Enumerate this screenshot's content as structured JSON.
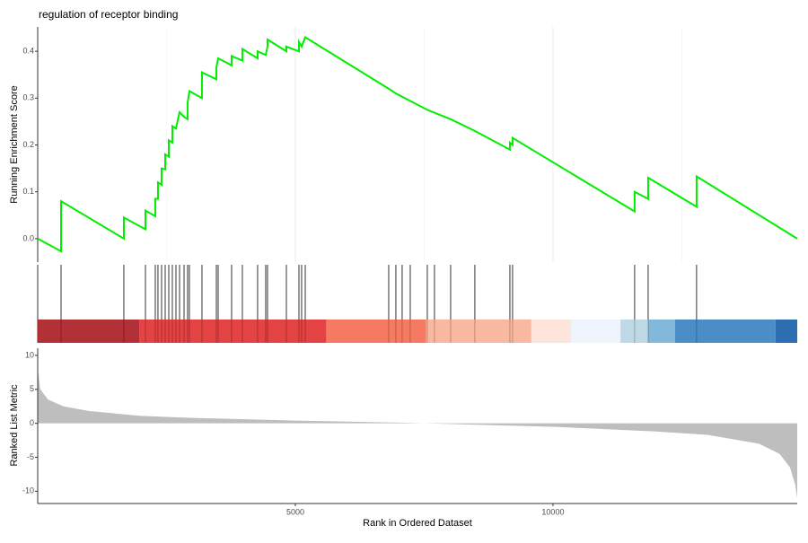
{
  "chart_data": {
    "type": "gsea",
    "title": "regulation of receptor binding",
    "xlabel": "Rank in Ordered Dataset",
    "xlim": [
      0,
      14740
    ],
    "xticks": [
      5000,
      10000
    ],
    "minor_grid": [
      2500,
      7500,
      12500
    ],
    "running_score": {
      "ylabel": "Running Enrichment Score",
      "color": "#00ee00",
      "ylim": [
        -0.05,
        0.452
      ],
      "yticks": [
        {
          "value": 0,
          "label": "0.0"
        },
        0.1,
        0.2,
        0.3,
        0.4
      ],
      "x": [
        0,
        453,
        453,
        1672,
        1672,
        2091,
        2091,
        2282,
        2282,
        2334,
        2334,
        2404,
        2404,
        2474,
        2474,
        2544,
        2544,
        2613,
        2613,
        2683,
        2753,
        2840,
        2909,
        2909,
        2944,
        3188,
        3188,
        3467,
        3467,
        3502,
        3763,
        3763,
        3972,
        3972,
        4268,
        4268,
        4425,
        4460,
        4460,
        4826,
        4826,
        5070,
        5070,
        5122,
        5192,
        6812,
        6951,
        7561,
        8014,
        8484,
        9164,
        9164,
        9216,
        9216,
        11585,
        11585,
        11847,
        11847,
        12787,
        12787,
        14740
      ],
      "values": [
        0,
        -0.027,
        0.08,
        0.0,
        0.045,
        0.02,
        0.06,
        0.048,
        0.085,
        0.085,
        0.12,
        0.115,
        0.15,
        0.148,
        0.18,
        0.175,
        0.21,
        0.205,
        0.24,
        0.235,
        0.27,
        0.26,
        0.255,
        0.29,
        0.315,
        0.3,
        0.355,
        0.34,
        0.365,
        0.385,
        0.37,
        0.39,
        0.38,
        0.405,
        0.385,
        0.4,
        0.392,
        0.41,
        0.425,
        0.4,
        0.41,
        0.4,
        0.42,
        0.41,
        0.43,
        0.32,
        0.31,
        0.275,
        0.255,
        0.23,
        0.19,
        0.205,
        0.2,
        0.215,
        0.058,
        0.1,
        0.085,
        0.13,
        0.068,
        0.133,
        0.0
      ]
    },
    "hits": [
      453,
      1672,
      2091,
      2282,
      2334,
      2404,
      2474,
      2544,
      2613,
      2683,
      2753,
      2840,
      2909,
      2944,
      3188,
      3467,
      3502,
      3763,
      3972,
      4268,
      4425,
      4460,
      4826,
      5070,
      5122,
      5192,
      6812,
      6951,
      7073,
      7230,
      7561,
      7700,
      8014,
      8484,
      9164,
      9216,
      11585,
      11847,
      12787
    ],
    "color_bands": [
      {
        "start": 0,
        "end": 1975,
        "color": "#ad262b"
      },
      {
        "start": 1975,
        "end": 5600,
        "color": "#e3393a"
      },
      {
        "start": 5600,
        "end": 7540,
        "color": "#f6735a"
      },
      {
        "start": 7540,
        "end": 9580,
        "color": "#f9b49b"
      },
      {
        "start": 9580,
        "end": 10350,
        "color": "#fde4da"
      },
      {
        "start": 10350,
        "end": 11310,
        "color": "#edf3fb"
      },
      {
        "start": 11310,
        "end": 11850,
        "color": "#bcd6e5"
      },
      {
        "start": 11850,
        "end": 12370,
        "color": "#7bb5d9"
      },
      {
        "start": 12370,
        "end": 14320,
        "color": "#4188c4"
      },
      {
        "start": 14320,
        "end": 14740,
        "color": "#2166ac"
      }
    ],
    "ranked_metric": {
      "ylabel": "Ranked List Metric",
      "color": "#bebebe",
      "ylim": [
        -11.8,
        11.05
      ],
      "yticks": [
        10,
        5,
        0,
        -5,
        -10
      ],
      "x": [
        0,
        50,
        200,
        500,
        1000,
        2000,
        3000,
        5000,
        7000,
        8000,
        10000,
        12000,
        13000,
        14000,
        14400,
        14600,
        14700,
        14740
      ],
      "values": [
        8,
        5,
        3.5,
        2.5,
        1.8,
        1.1,
        0.8,
        0.4,
        0.1,
        -0.1,
        -0.5,
        -1.2,
        -1.7,
        -3,
        -4.5,
        -6.5,
        -9,
        -11
      ]
    }
  }
}
